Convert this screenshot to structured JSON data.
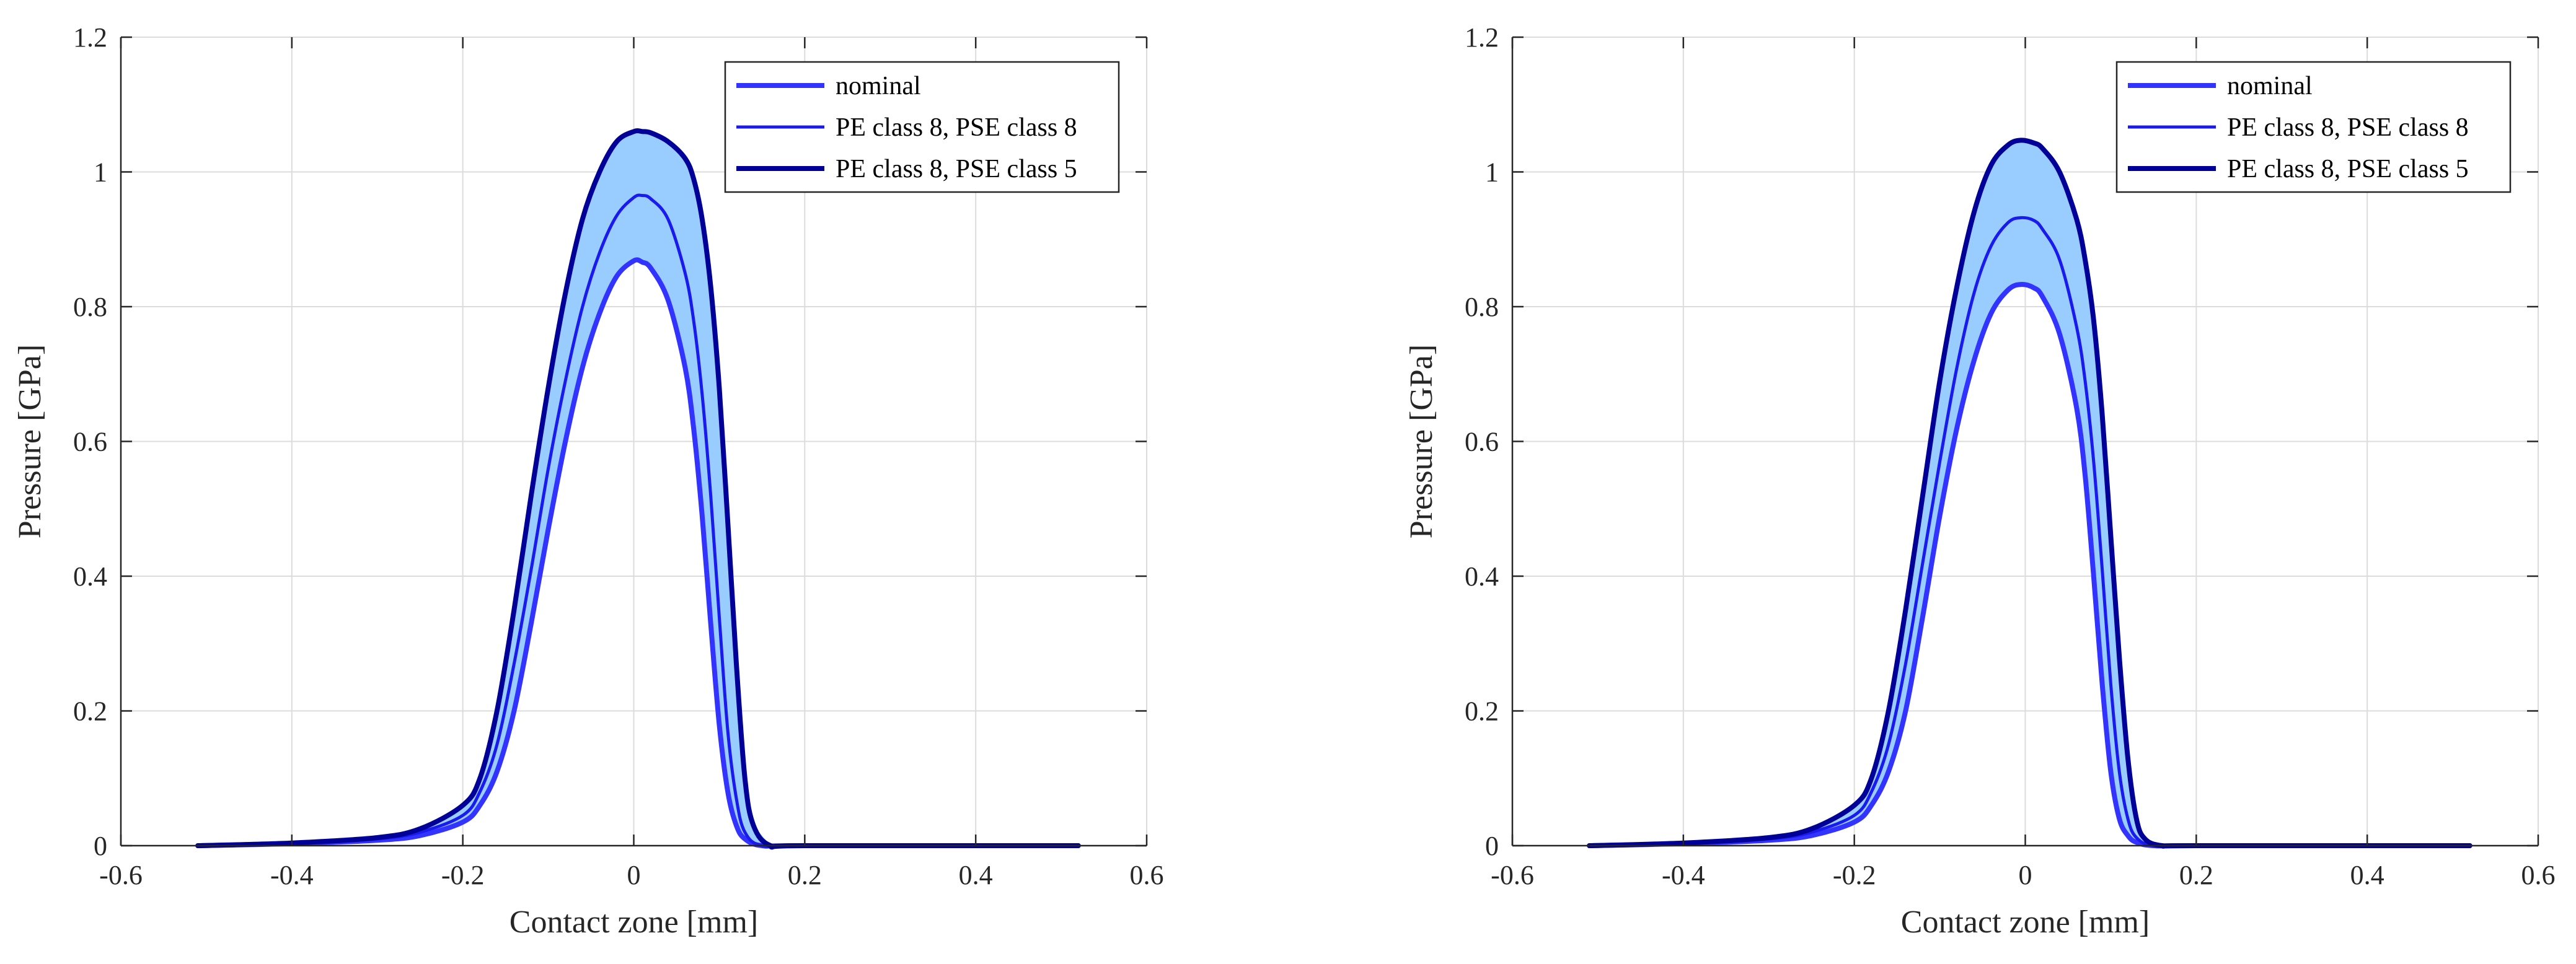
{
  "chart_data": [
    {
      "type": "line",
      "xlabel": "Contact zone [mm]",
      "ylabel": "Pressure [GPa]",
      "xlim": [
        -0.6,
        0.6
      ],
      "ylim": [
        0,
        1.2
      ],
      "xticks": [
        "-0.6",
        "-0.4",
        "-0.2",
        "0",
        "0.2",
        "0.4",
        "0.6"
      ],
      "yticks": [
        "0",
        "0.2",
        "0.4",
        "0.6",
        "0.8",
        "1",
        "1.2"
      ],
      "grid": true,
      "legend_position": "top-right",
      "band": {
        "between": [
          "nominal",
          "PE class 8, PSE class 5"
        ],
        "color": "#99ccff"
      },
      "series": [
        {
          "name": "nominal",
          "color": "#3333ff",
          "x": [
            -0.51,
            -0.4,
            -0.3,
            -0.25,
            -0.2,
            -0.18,
            -0.16,
            -0.14,
            -0.12,
            -0.1,
            -0.08,
            -0.06,
            -0.04,
            -0.02,
            0,
            0.01,
            0.02,
            0.04,
            0.06,
            0.07,
            0.08,
            0.09,
            0.1,
            0.11,
            0.12,
            0.13,
            0.15,
            0.2,
            0.52
          ],
          "y": [
            0,
            0.003,
            0.008,
            0.015,
            0.035,
            0.06,
            0.11,
            0.2,
            0.33,
            0.47,
            0.6,
            0.71,
            0.79,
            0.845,
            0.868,
            0.866,
            0.857,
            0.81,
            0.71,
            0.62,
            0.49,
            0.33,
            0.18,
            0.08,
            0.03,
            0.01,
            0,
            0,
            0
          ]
        },
        {
          "name": "PE class 8, PSE class 8",
          "color": "#1a1aee",
          "x": [
            -0.51,
            -0.4,
            -0.3,
            -0.25,
            -0.2,
            -0.18,
            -0.16,
            -0.14,
            -0.12,
            -0.1,
            -0.08,
            -0.06,
            -0.04,
            -0.02,
            0,
            0.01,
            0.02,
            0.04,
            0.06,
            0.07,
            0.08,
            0.09,
            0.1,
            0.11,
            0.12,
            0.13,
            0.15,
            0.2,
            0.52
          ],
          "y": [
            0,
            0.003,
            0.01,
            0.02,
            0.045,
            0.08,
            0.15,
            0.27,
            0.41,
            0.56,
            0.69,
            0.8,
            0.88,
            0.935,
            0.962,
            0.965,
            0.96,
            0.93,
            0.85,
            0.78,
            0.67,
            0.52,
            0.34,
            0.17,
            0.07,
            0.02,
            0,
            0,
            0
          ]
        },
        {
          "name": "PE class 8, PSE class 5",
          "color": "#000099",
          "x": [
            -0.51,
            -0.4,
            -0.3,
            -0.25,
            -0.2,
            -0.18,
            -0.16,
            -0.14,
            -0.12,
            -0.1,
            -0.08,
            -0.06,
            -0.04,
            -0.02,
            0,
            0.01,
            0.02,
            0.04,
            0.06,
            0.07,
            0.08,
            0.09,
            0.1,
            0.11,
            0.12,
            0.13,
            0.14,
            0.16,
            0.2,
            0.52
          ],
          "y": [
            0,
            0.004,
            0.012,
            0.025,
            0.06,
            0.1,
            0.2,
            0.35,
            0.52,
            0.68,
            0.82,
            0.93,
            1.0,
            1.045,
            1.06,
            1.06,
            1.058,
            1.045,
            1.02,
            0.99,
            0.93,
            0.83,
            0.68,
            0.48,
            0.27,
            0.1,
            0.03,
            0,
            0,
            0
          ]
        }
      ]
    },
    {
      "type": "line",
      "xlabel": "Contact zone [mm]",
      "ylabel": "Pressure [GPa]",
      "xlim": [
        -0.6,
        0.6
      ],
      "ylim": [
        0,
        1.2
      ],
      "xticks": [
        "-0.6",
        "-0.4",
        "-0.2",
        "0",
        "0.2",
        "0.4",
        "0.6"
      ],
      "yticks": [
        "0",
        "0.2",
        "0.4",
        "0.6",
        "0.8",
        "1",
        "1.2"
      ],
      "grid": true,
      "legend_position": "top-right",
      "band": {
        "between": [
          "nominal",
          "PE class 8, PSE class 5"
        ],
        "color": "#99ccff"
      },
      "series": [
        {
          "name": "nominal",
          "color": "#3333ff",
          "x": [
            -0.51,
            -0.4,
            -0.3,
            -0.25,
            -0.2,
            -0.18,
            -0.16,
            -0.14,
            -0.12,
            -0.1,
            -0.08,
            -0.06,
            -0.04,
            -0.02,
            -0.005,
            0.01,
            0.02,
            0.04,
            0.06,
            0.07,
            0.08,
            0.09,
            0.1,
            0.11,
            0.12,
            0.13,
            0.15,
            0.2,
            0.52
          ],
          "y": [
            0,
            0.003,
            0.008,
            0.015,
            0.035,
            0.06,
            0.11,
            0.2,
            0.34,
            0.49,
            0.62,
            0.72,
            0.79,
            0.825,
            0.833,
            0.828,
            0.815,
            0.76,
            0.65,
            0.55,
            0.4,
            0.24,
            0.11,
            0.04,
            0.015,
            0.005,
            0,
            0,
            0
          ]
        },
        {
          "name": "PE class 8, PSE class 8",
          "color": "#1a1aee",
          "x": [
            -0.51,
            -0.4,
            -0.3,
            -0.25,
            -0.2,
            -0.18,
            -0.16,
            -0.14,
            -0.12,
            -0.1,
            -0.08,
            -0.06,
            -0.04,
            -0.02,
            -0.005,
            0.01,
            0.02,
            0.04,
            0.06,
            0.07,
            0.08,
            0.09,
            0.1,
            0.11,
            0.12,
            0.13,
            0.15,
            0.2,
            0.52
          ],
          "y": [
            0,
            0.003,
            0.01,
            0.02,
            0.045,
            0.08,
            0.15,
            0.27,
            0.42,
            0.57,
            0.71,
            0.82,
            0.89,
            0.925,
            0.932,
            0.928,
            0.915,
            0.87,
            0.77,
            0.69,
            0.57,
            0.41,
            0.24,
            0.11,
            0.04,
            0.012,
            0,
            0,
            0
          ]
        },
        {
          "name": "PE class 8, PSE class 5",
          "color": "#000099",
          "x": [
            -0.51,
            -0.4,
            -0.3,
            -0.25,
            -0.2,
            -0.18,
            -0.16,
            -0.14,
            -0.12,
            -0.1,
            -0.08,
            -0.06,
            -0.04,
            -0.02,
            -0.005,
            0.01,
            0.02,
            0.04,
            0.06,
            0.07,
            0.08,
            0.09,
            0.1,
            0.11,
            0.12,
            0.13,
            0.14,
            0.16,
            0.2,
            0.52
          ],
          "y": [
            0,
            0.004,
            0.012,
            0.025,
            0.06,
            0.1,
            0.2,
            0.35,
            0.52,
            0.69,
            0.83,
            0.94,
            1.01,
            1.04,
            1.047,
            1.043,
            1.035,
            1.0,
            0.93,
            0.87,
            0.78,
            0.64,
            0.46,
            0.28,
            0.13,
            0.04,
            0.01,
            0,
            0,
            0
          ]
        }
      ]
    }
  ]
}
